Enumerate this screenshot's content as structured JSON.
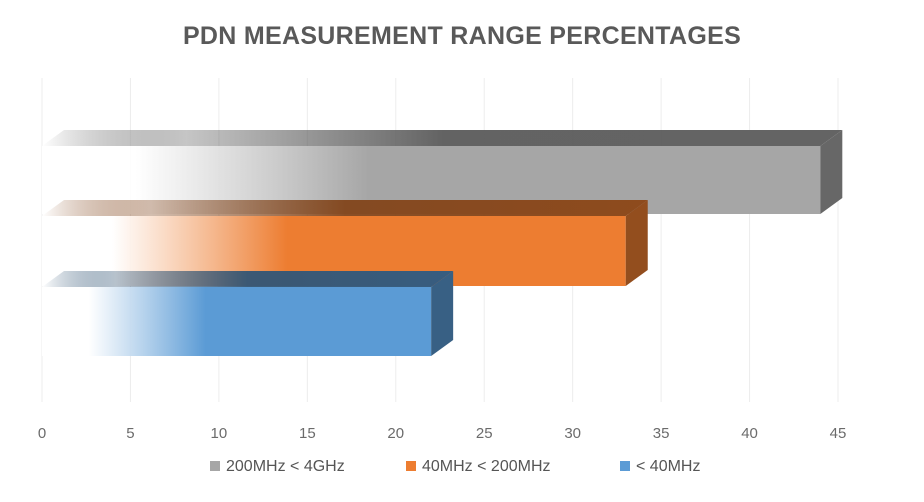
{
  "chart_data": {
    "type": "bar",
    "orientation": "horizontal",
    "title": "PDN MEASUREMENT RANGE PERCENTAGES",
    "xlabel": "",
    "ylabel": "",
    "xlim": [
      0,
      45
    ],
    "xticks": [
      0,
      5,
      10,
      15,
      20,
      25,
      30,
      35,
      40,
      45
    ],
    "grid": true,
    "legend_position": "bottom",
    "series": [
      {
        "name": "200MHz < 4GHz",
        "value": 44,
        "color": "#a6a6a6"
      },
      {
        "name": "40MHz < 200MHz",
        "value": 33,
        "color": "#ed7d31"
      },
      {
        "name": "< 40MHz",
        "value": 22,
        "color": "#5b9bd5"
      }
    ]
  }
}
